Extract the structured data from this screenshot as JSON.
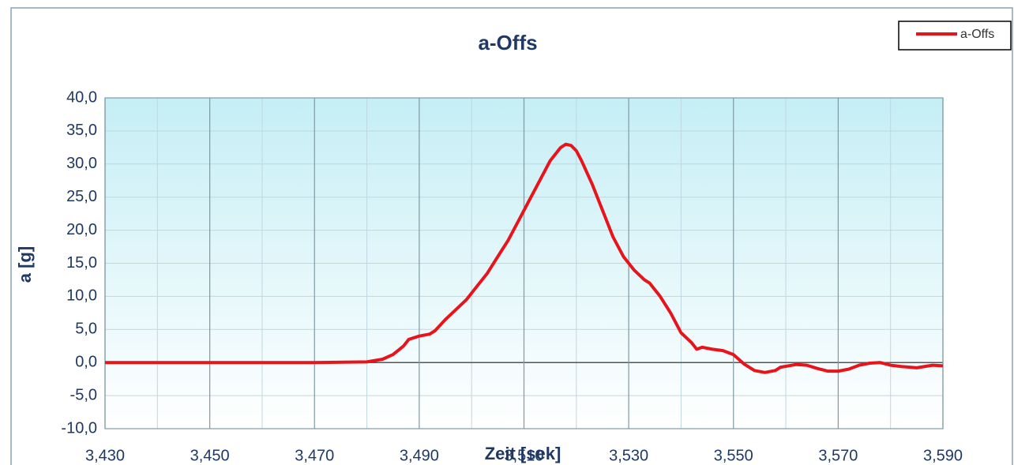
{
  "chart_data": {
    "type": "line",
    "title": "a-Offs",
    "x_label": "Zeit [sek]",
    "y_label": "a [g]",
    "x": [
      3.43,
      3.44,
      3.45,
      3.46,
      3.47,
      3.48,
      3.483,
      3.485,
      3.487,
      3.488,
      3.49,
      3.492,
      3.493,
      3.495,
      3.497,
      3.499,
      3.501,
      3.503,
      3.505,
      3.507,
      3.509,
      3.511,
      3.513,
      3.515,
      3.517,
      3.518,
      3.519,
      3.52,
      3.521,
      3.523,
      3.525,
      3.527,
      3.529,
      3.531,
      3.533,
      3.534,
      3.536,
      3.538,
      3.54,
      3.542,
      3.543,
      3.544,
      3.546,
      3.548,
      3.55,
      3.552,
      3.554,
      3.556,
      3.558,
      3.559,
      3.562,
      3.564,
      3.566,
      3.568,
      3.57,
      3.572,
      3.574,
      3.576,
      3.578,
      3.58,
      3.582,
      3.585,
      3.588,
      3.59
    ],
    "series": [
      {
        "name": "a-Offs",
        "color": "#e8141b",
        "values": [
          0,
          0,
          0,
          0,
          0,
          0.1,
          0.5,
          1.2,
          2.5,
          3.5,
          4.0,
          4.3,
          4.8,
          6.5,
          8.0,
          9.5,
          11.5,
          13.5,
          16.0,
          18.5,
          21.5,
          24.5,
          27.5,
          30.5,
          32.5,
          33.0,
          32.8,
          32.0,
          30.5,
          27.0,
          23.0,
          19.0,
          16.0,
          14.0,
          12.5,
          12.0,
          10.0,
          7.5,
          4.5,
          3.0,
          2.0,
          2.3,
          2.0,
          1.8,
          1.2,
          -0.2,
          -1.2,
          -1.5,
          -1.2,
          -0.7,
          -0.3,
          -0.4,
          -0.9,
          -1.3,
          -1.3,
          -1.0,
          -0.4,
          -0.1,
          0.0,
          -0.4,
          -0.6,
          -0.8,
          -0.4,
          -0.5
        ]
      }
    ],
    "xlim": [
      3.43,
      3.59
    ],
    "xticks": [
      {
        "value": 3.43,
        "label": "3,430"
      },
      {
        "value": 3.45,
        "label": "3,450"
      },
      {
        "value": 3.47,
        "label": "3,470"
      },
      {
        "value": 3.49,
        "label": "3,490"
      },
      {
        "value": 3.51,
        "label": "3,510"
      },
      {
        "value": 3.53,
        "label": "3,530"
      },
      {
        "value": 3.55,
        "label": "3,550"
      },
      {
        "value": 3.57,
        "label": "3,570"
      },
      {
        "value": 3.59,
        "label": "3,590"
      }
    ],
    "xminorticks": [
      3.44,
      3.46,
      3.48,
      3.5,
      3.52,
      3.54,
      3.56,
      3.58
    ],
    "ylim": [
      -10,
      40
    ],
    "yticks": [
      {
        "value": -10,
        "label": "-10,0"
      },
      {
        "value": -5,
        "label": "-5,0"
      },
      {
        "value": 0,
        "label": "0,0"
      },
      {
        "value": 5,
        "label": "5,0"
      },
      {
        "value": 10,
        "label": "10,0"
      },
      {
        "value": 15,
        "label": "15,0"
      },
      {
        "value": 20,
        "label": "20,0"
      },
      {
        "value": 25,
        "label": "25,0"
      },
      {
        "value": 30,
        "label": "30,0"
      },
      {
        "value": 35,
        "label": "35,0"
      },
      {
        "value": 40,
        "label": "40,0"
      }
    ],
    "grid": true,
    "legend": "top-right"
  }
}
